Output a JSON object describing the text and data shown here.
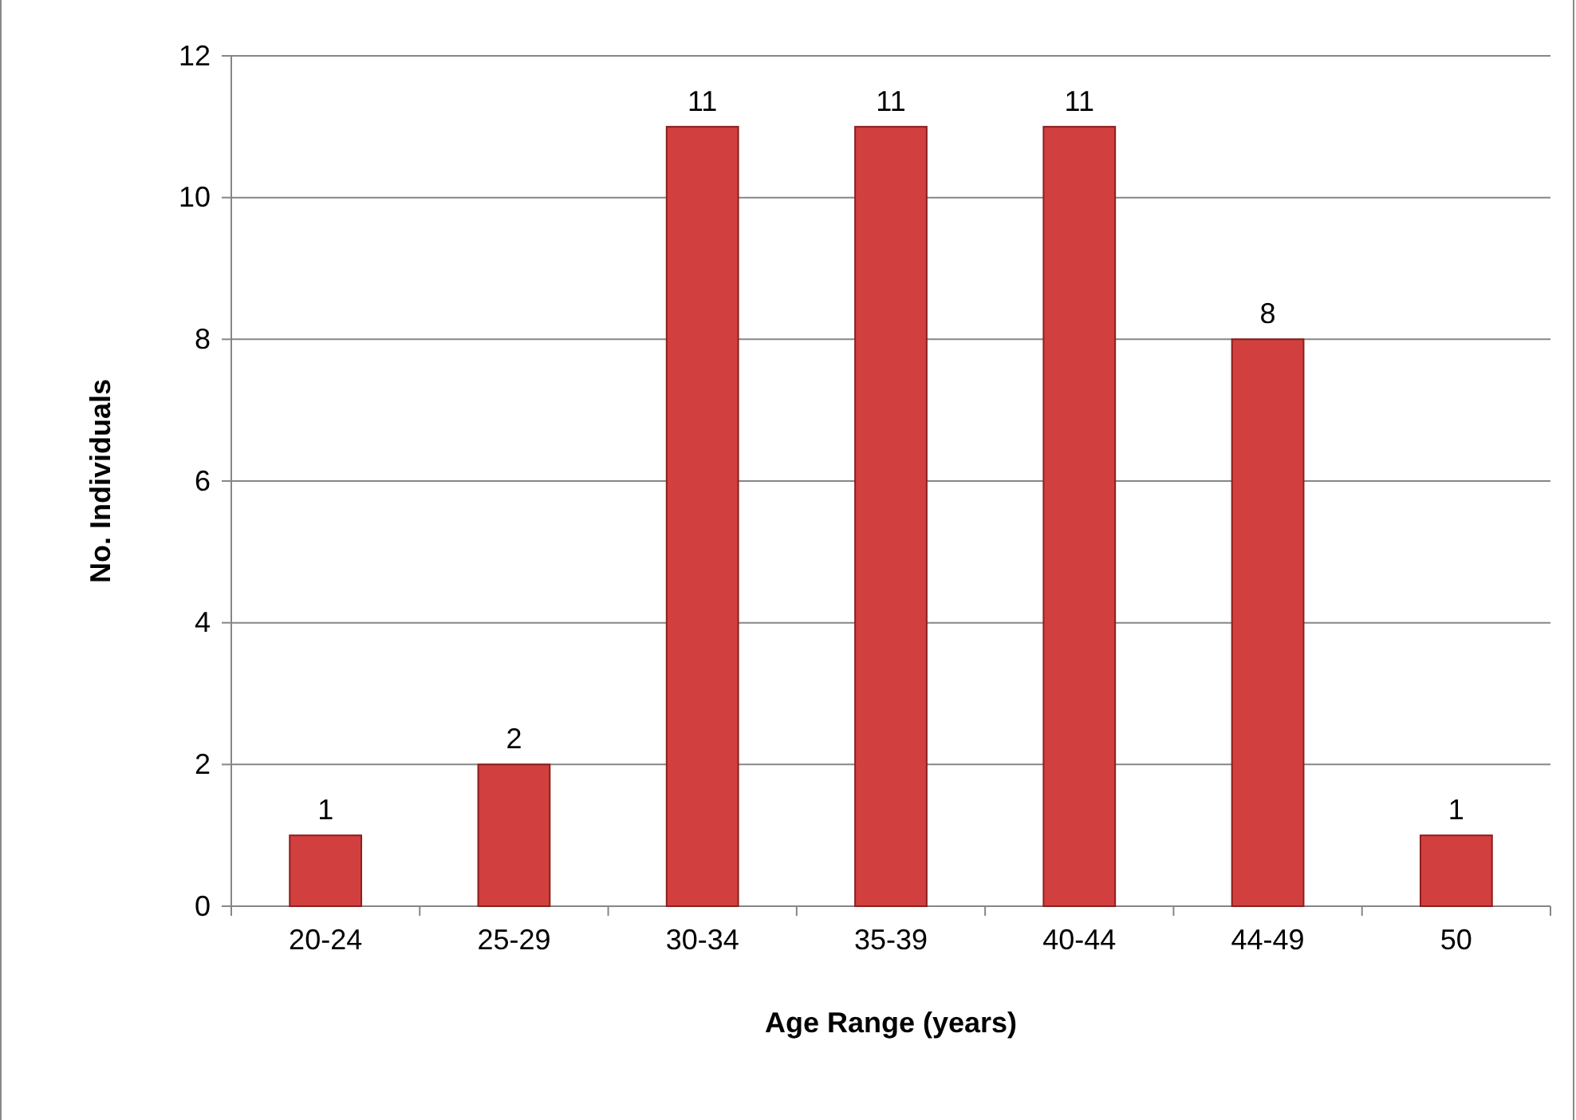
{
  "chart_data": {
    "type": "bar",
    "xlabel": "Age Range (years)",
    "ylabel": "No. Individuals",
    "categories": [
      "20-24",
      "25-29",
      "30-34",
      "35-39",
      "40-44",
      "44-49",
      "50"
    ],
    "values": [
      1,
      2,
      11,
      11,
      11,
      8,
      1
    ],
    "color": "#d23f3f",
    "ylim": [
      0,
      12
    ],
    "yticks": [
      0,
      2,
      4,
      6,
      8,
      10,
      12
    ],
    "grid": "y",
    "data_labels": true
  }
}
